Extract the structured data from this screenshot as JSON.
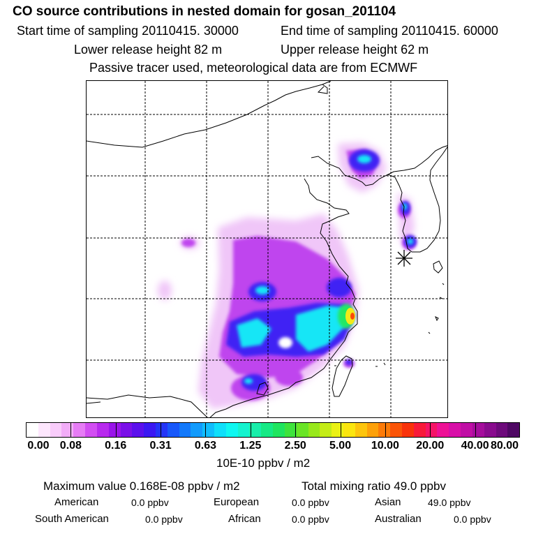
{
  "header": {
    "title": "CO  source contributions in nested domain for gosan_201104",
    "start_time": "Start time of sampling 20110415. 30000",
    "end_time": "End time of sampling 20110415. 60000",
    "lower_release": "Lower release height   82 m",
    "upper_release": "Upper release height   62 m",
    "passive_note": "Passive tracer used, meteorological data are from ECMWF"
  },
  "map": {
    "receptor_marker": "asterisk-receptor-gosan",
    "grid": "dashed lat/lon graticule"
  },
  "colorbar": {
    "colors": [
      "#ffffff",
      "#fde6fd",
      "#f9ccfb",
      "#f2adf8",
      "#e67cf5",
      "#d24ef2",
      "#b82aee",
      "#9a14ea",
      "#7a10e8",
      "#5b10ec",
      "#3b18f2",
      "#2435f7",
      "#1858fa",
      "#1379fb",
      "#129bfc",
      "#10bdfc",
      "#0fdffa",
      "#0ff7f1",
      "#15f3cf",
      "#18eeaa",
      "#16e985",
      "#1fe55f",
      "#3ee33c",
      "#6ae526",
      "#98e81c",
      "#c4ec17",
      "#eaf114",
      "#fbe60f",
      "#fdc50d",
      "#fda10a",
      "#fc7b08",
      "#fb5508",
      "#f9330b",
      "#f81a3a",
      "#f51467",
      "#ee1196",
      "#d80fa8",
      "#c00ea5",
      "#a50d9c",
      "#890b8e",
      "#6d0a7b",
      "#4e0763"
    ],
    "tick_labels": [
      "0.00",
      "0.08",
      "0.16",
      "0.31",
      "0.63",
      "1.25",
      "2.50",
      "5.00",
      "10.00",
      "20.00",
      "40.00",
      "80.00"
    ],
    "unit": "10E-10 ppbv / m2"
  },
  "stats": {
    "max_value": "Maximum value  0.168E-08 ppbv / m2",
    "total_mixing": "Total mixing ratio       49.0 ppbv"
  },
  "sources": [
    {
      "label": "American",
      "value": "0.0 ppbv"
    },
    {
      "label": "European",
      "value": "0.0 ppbv"
    },
    {
      "label": "Asian",
      "value": "49.0 ppbv"
    },
    {
      "label": "South American",
      "value": "0.0 ppbv"
    },
    {
      "label": "African",
      "value": "0.0 ppbv"
    },
    {
      "label": "Australian",
      "value": "0.0 ppbv"
    }
  ]
}
